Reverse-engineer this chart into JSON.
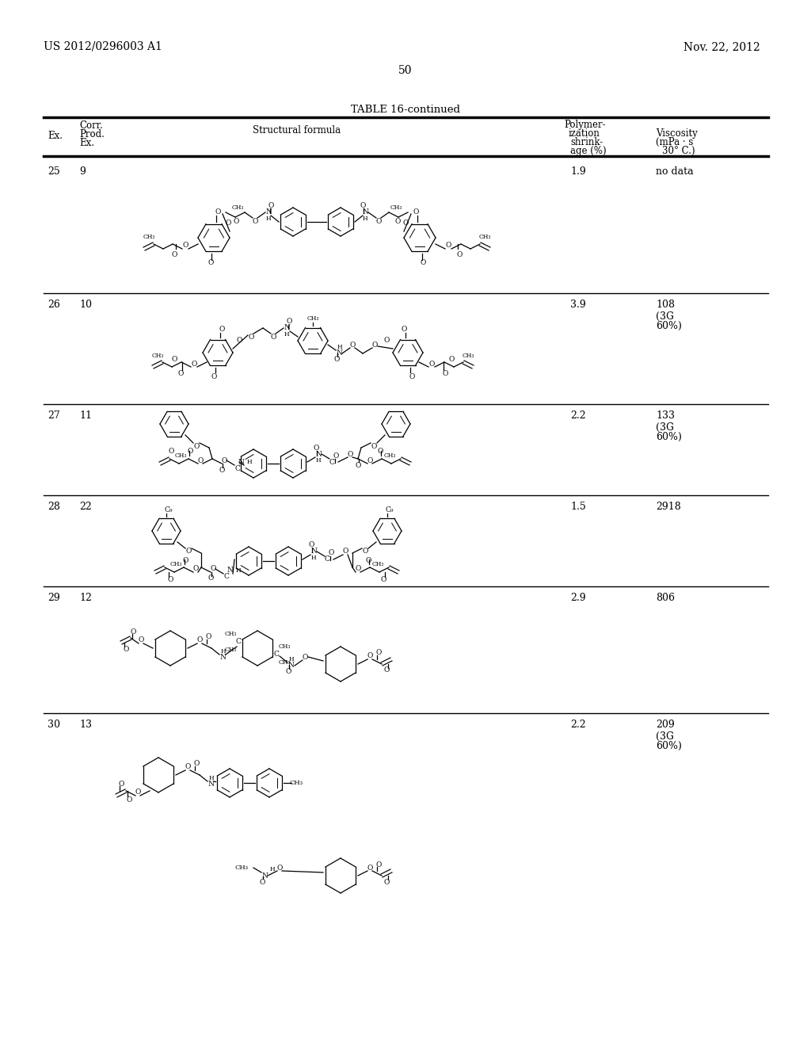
{
  "header_left": "US 2012/0296003 A1",
  "header_right": "Nov. 22, 2012",
  "page_num": "50",
  "table_title": "TABLE 16-continued",
  "col1": "Ex.",
  "col2_1": "Corr.",
  "col2_2": "Prod.",
  "col2_3": "Ex.",
  "col3": "Structural formula",
  "col4_1": "Polymer-",
  "col4_2": "ization",
  "col4_3": "shrink-",
  "col4_4": "age (%)",
  "col5_1": "Viscosity",
  "col5_2": "(mPa · s",
  "col5_3": "30° C.)",
  "rows": [
    {
      "ex": "25",
      "corr": "9",
      "shrink": "1.9",
      "visc": "no data"
    },
    {
      "ex": "26",
      "corr": "10",
      "shrink": "3.9",
      "visc": "108\n(3G\n60%)"
    },
    {
      "ex": "27",
      "corr": "11",
      "shrink": "2.2",
      "visc": "133\n(3G\n60%)"
    },
    {
      "ex": "28",
      "corr": "22",
      "shrink": "1.5",
      "visc": "2918"
    },
    {
      "ex": "29",
      "corr": "12",
      "shrink": "2.9",
      "visc": "806"
    },
    {
      "ex": "30",
      "corr": "13",
      "shrink": "2.2",
      "visc": "209\n(3G\n60%)"
    }
  ],
  "bg": "#ffffff",
  "fg": "#000000"
}
